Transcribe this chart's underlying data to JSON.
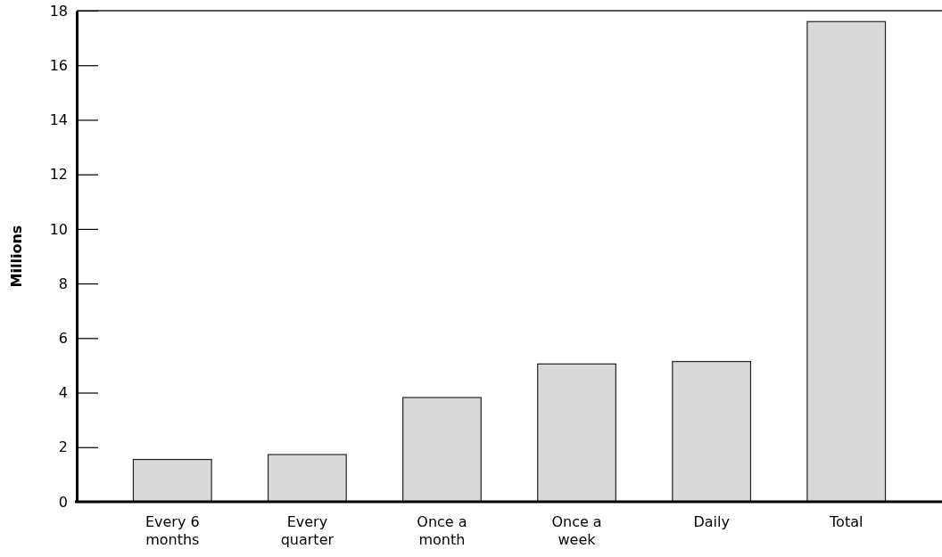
{
  "chart_data": {
    "type": "bar",
    "ylabel": "Millions",
    "categories": [
      "Every 6 months",
      "Every quarter",
      "Once a month",
      "Once a week",
      "Daily",
      "Total"
    ],
    "values": [
      1.55,
      1.73,
      3.82,
      5.05,
      5.14,
      17.6
    ],
    "color": "#d9d9d9",
    "ylim": [
      0,
      18
    ],
    "yticks": [
      0,
      2,
      4,
      6,
      8,
      10,
      12,
      14,
      16,
      18
    ],
    "grid": false
  }
}
